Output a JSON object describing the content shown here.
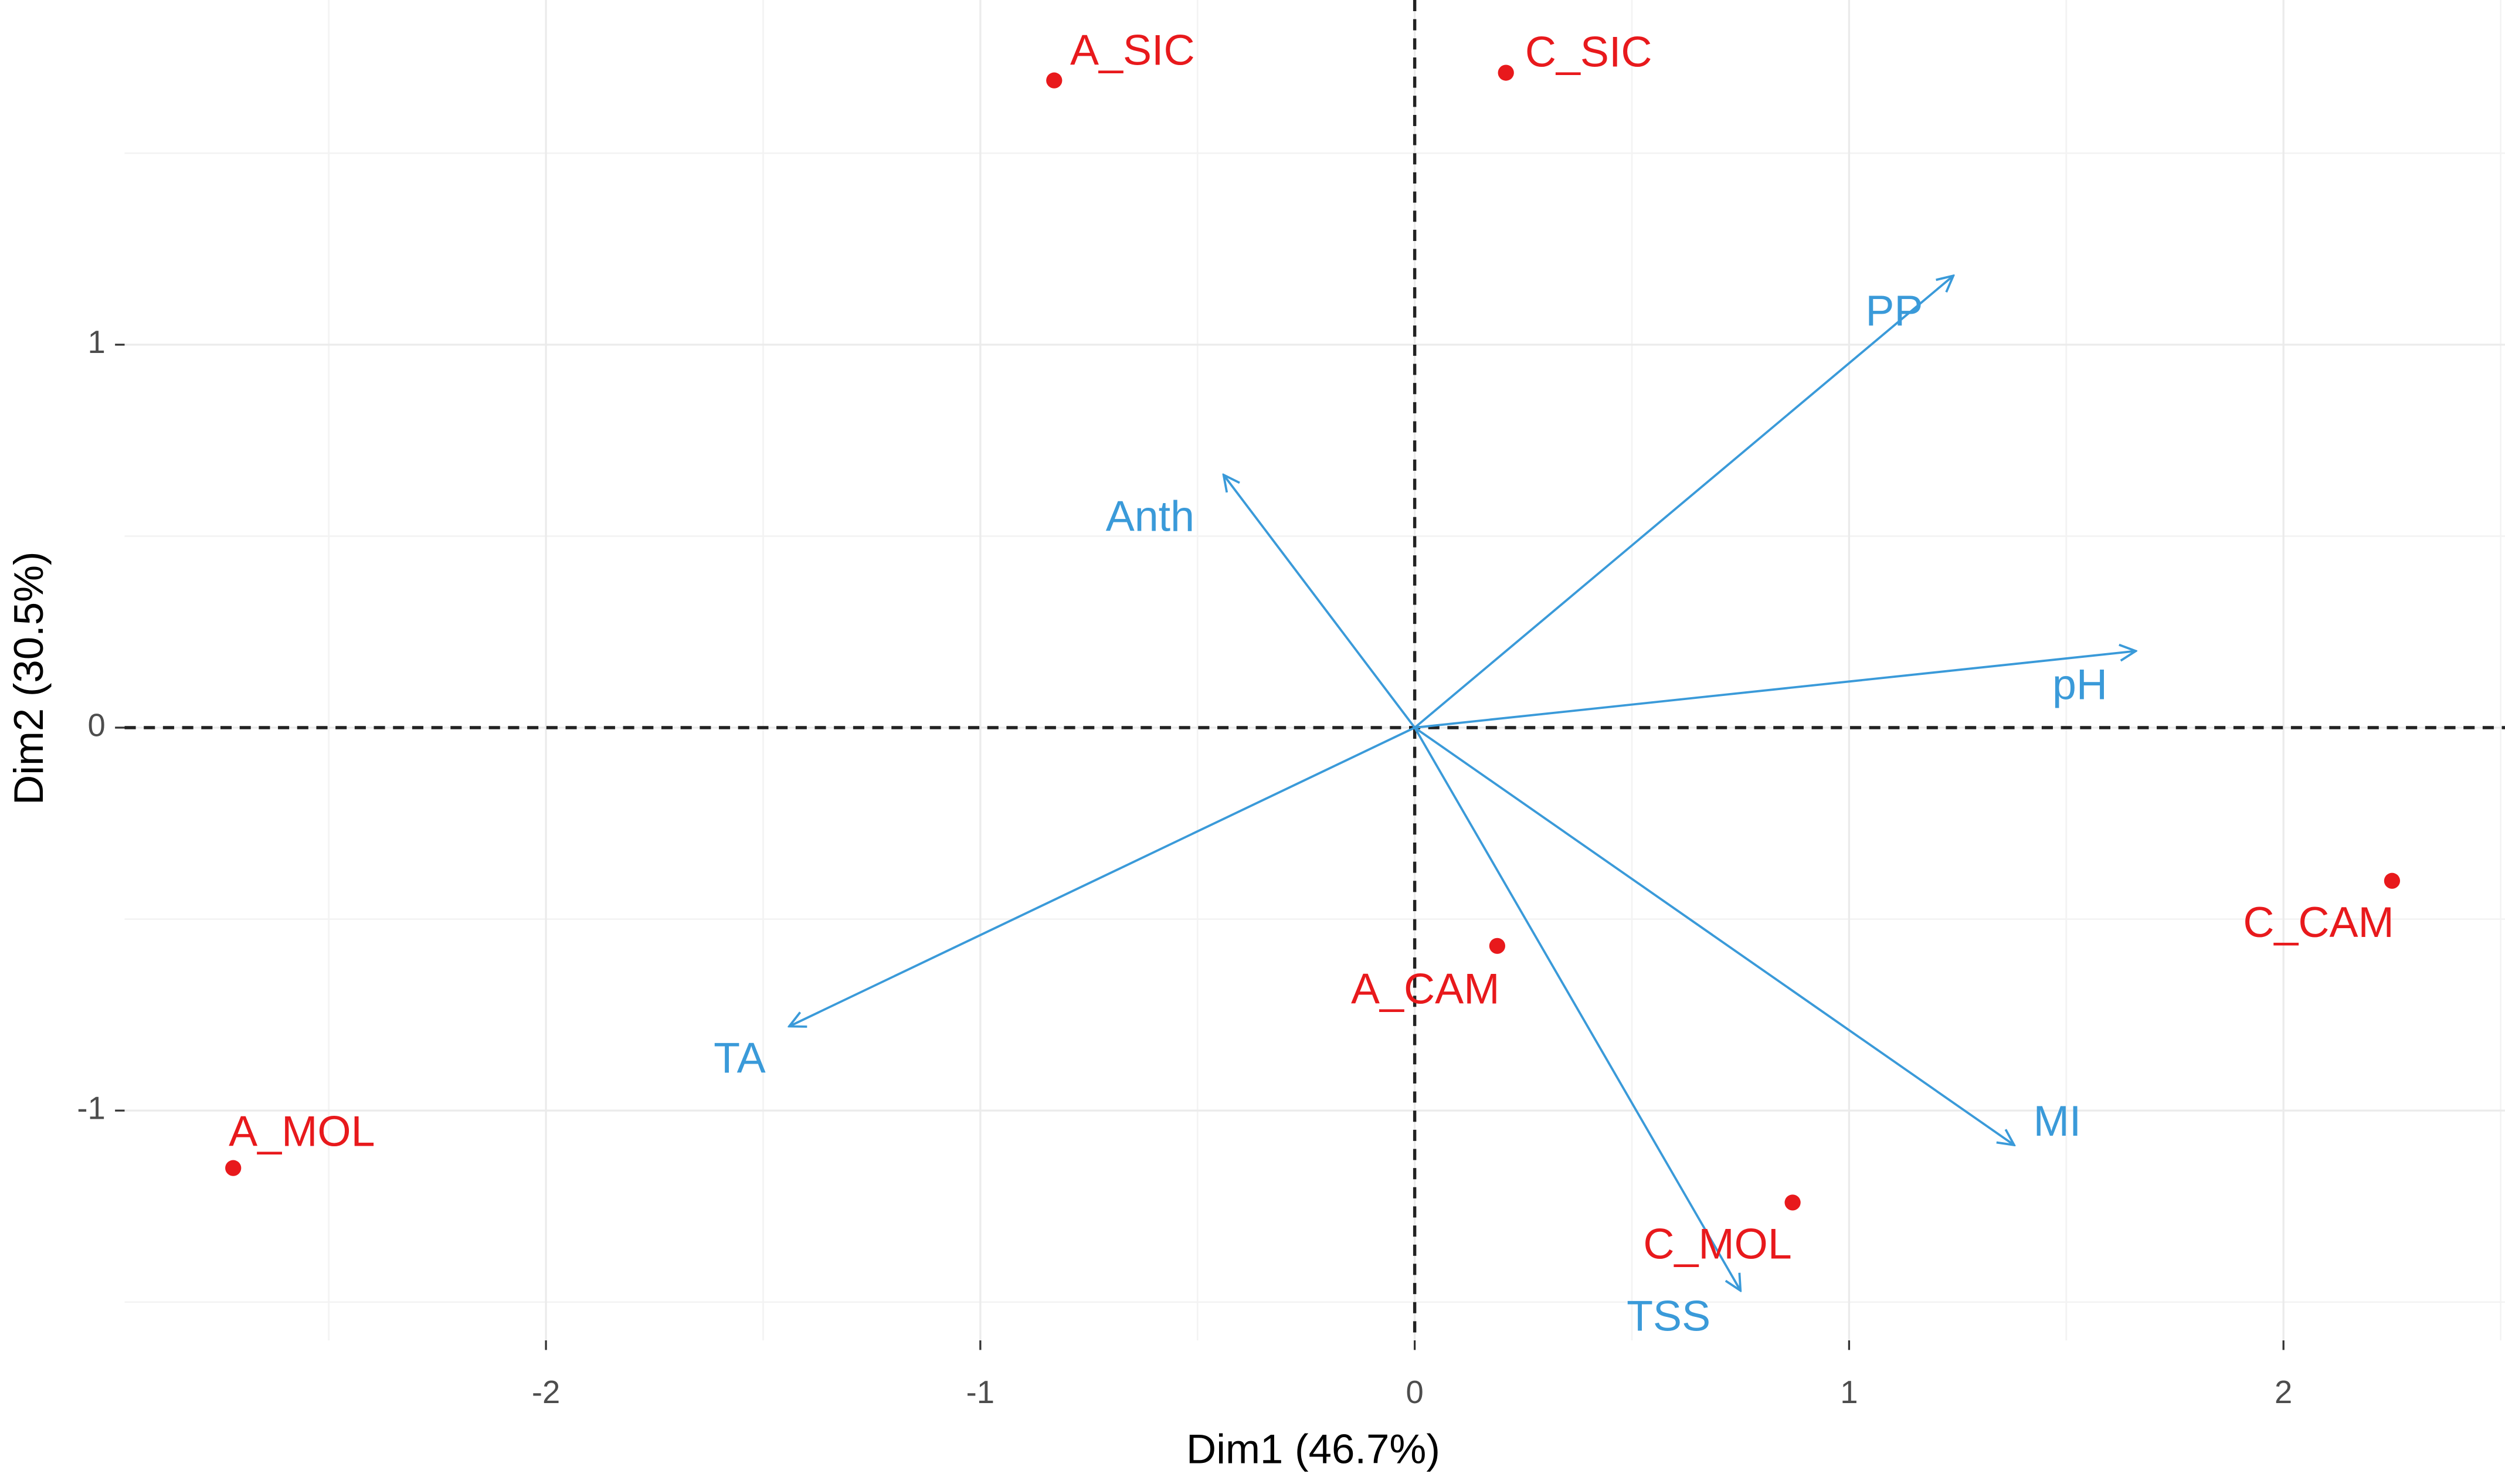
{
  "chart_data": {
    "type": "biplot",
    "x_label": "Dim1 (46.7%)",
    "y_label": "Dim2 (30.5%)",
    "xlim": [
      -2.97,
      2.51
    ],
    "ylim": [
      -1.6,
      1.9
    ],
    "xticks": [
      -2,
      -1,
      0,
      1,
      2
    ],
    "yticks": [
      -1,
      0,
      1
    ],
    "grid": true,
    "hline": 0,
    "vline": 0,
    "points": {
      "color": "#e8191c",
      "labels": [
        "A_SIC",
        "C_SIC",
        "A_CAM",
        "C_CAM",
        "A_MOL",
        "C_MOL"
      ],
      "x": [
        -0.83,
        0.21,
        0.19,
        2.25,
        -2.72,
        0.87
      ],
      "y": [
        1.69,
        1.71,
        -0.57,
        -0.4,
        -1.15,
        -1.24
      ]
    },
    "vectors": {
      "color": "#3a9ad9",
      "labels": [
        "PP",
        "Anth",
        "pH",
        "TA",
        "MI",
        "TSS"
      ],
      "x": [
        1.24,
        -0.44,
        1.66,
        -1.44,
        1.38,
        0.75
      ],
      "y": [
        1.18,
        0.66,
        0.2,
        -0.78,
        -1.09,
        -1.47
      ]
    }
  }
}
